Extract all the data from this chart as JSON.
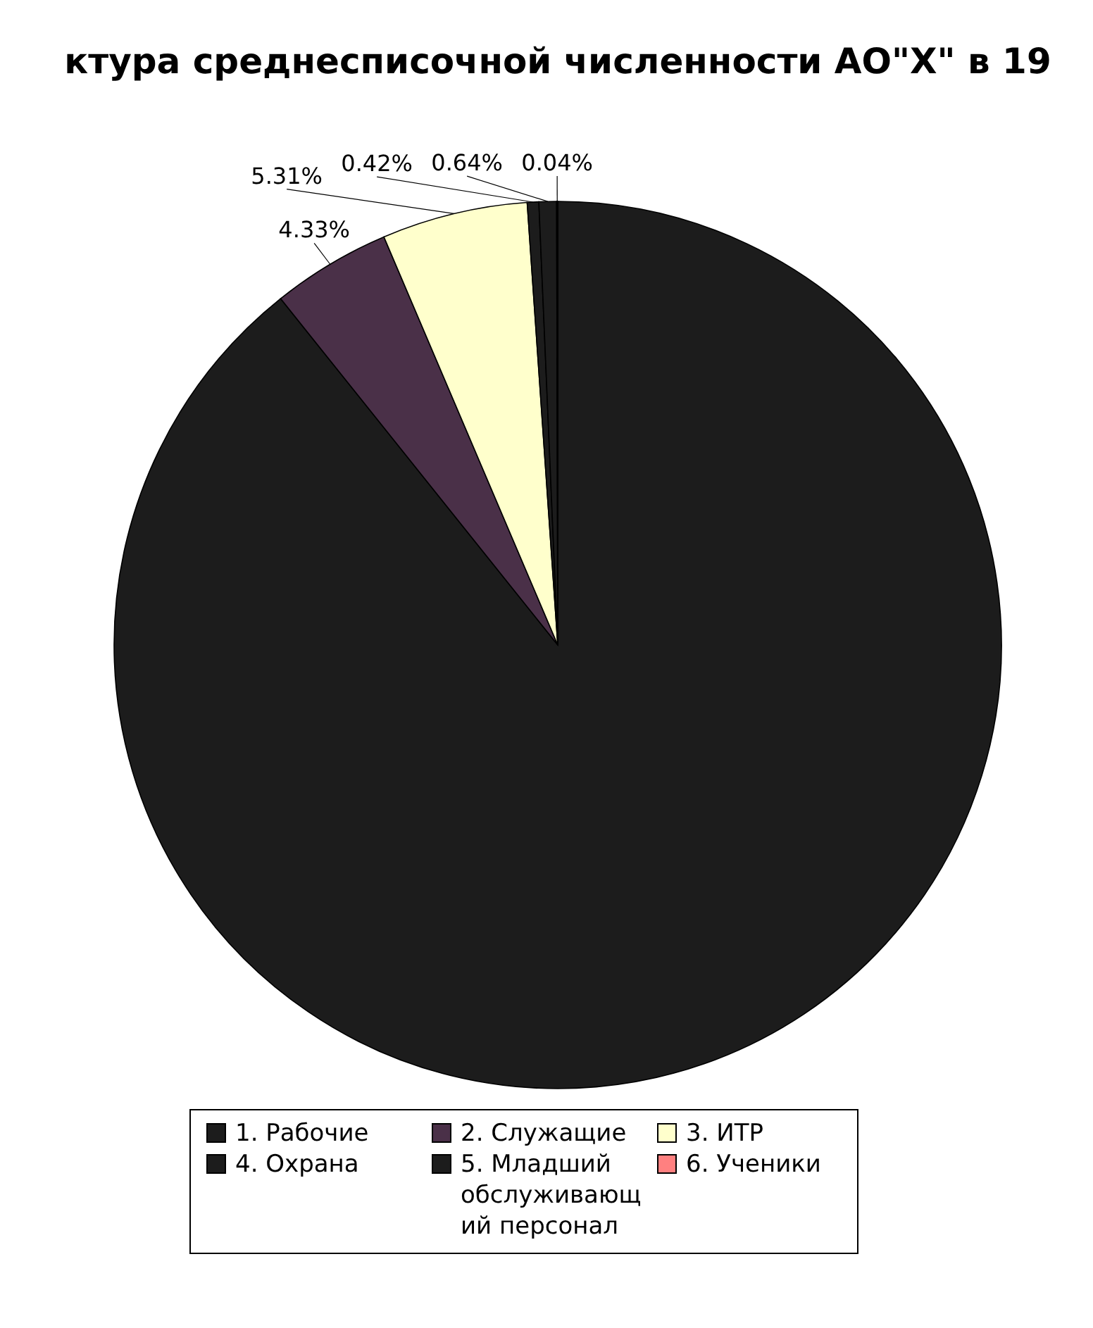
{
  "chart_data": {
    "type": "pie",
    "title": "ктура среднесписочной численности АО\"Х\" в 19",
    "categories": [
      "1. Рабочие",
      "2. Служащие",
      "3. ИТР",
      "4. Охрана",
      "5. Младший обслуживающий персонал",
      "6. Ученики"
    ],
    "values": [
      89.26,
      4.33,
      5.31,
      0.42,
      0.64,
      0.04
    ],
    "value_labels": [
      null,
      "4.33%",
      "5.31%",
      "0.42%",
      "0.64%",
      "0.04%"
    ],
    "colors": [
      "#1c1c1c",
      "#4a3048",
      "#ffffcc",
      "#1c1c1c",
      "#1c1c1c",
      "#ff8080"
    ],
    "legend": "bottom"
  }
}
